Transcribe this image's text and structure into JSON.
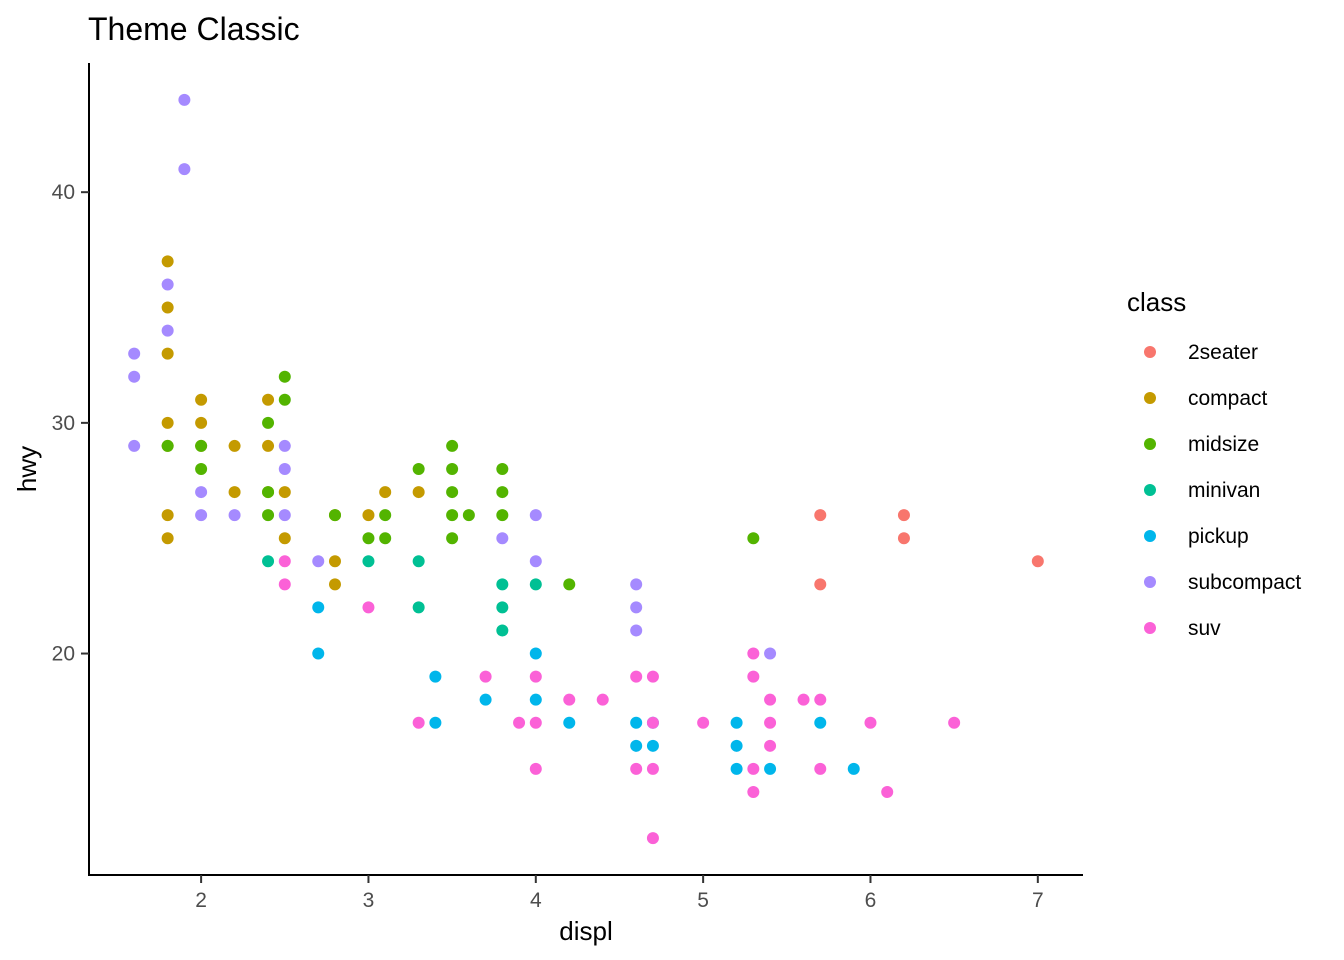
{
  "chart_data": {
    "type": "scatter",
    "title": "Theme Classic",
    "xlabel": "displ",
    "ylabel": "hwy",
    "xlim": [
      1.33,
      7.27
    ],
    "ylim": [
      10.4,
      45.6
    ],
    "xticks": [
      2,
      3,
      4,
      5,
      6,
      7
    ],
    "yticks": [
      20,
      30,
      40
    ],
    "grid": false,
    "legend": {
      "title": "class",
      "position": "right"
    },
    "series": [
      {
        "name": "2seater",
        "color": "#F8766D",
        "points": [
          [
            5.7,
            26
          ],
          [
            5.7,
            23
          ],
          [
            6.2,
            26
          ],
          [
            6.2,
            25
          ],
          [
            7.0,
            24
          ]
        ]
      },
      {
        "name": "compact",
        "color": "#C49A00",
        "points": [
          [
            1.8,
            37
          ],
          [
            1.8,
            35
          ],
          [
            1.8,
            33
          ],
          [
            1.8,
            30
          ],
          [
            1.8,
            29
          ],
          [
            1.8,
            26
          ],
          [
            1.8,
            25
          ],
          [
            2.0,
            31
          ],
          [
            2.0,
            30
          ],
          [
            2.0,
            29
          ],
          [
            2.2,
            29
          ],
          [
            2.2,
            27
          ],
          [
            2.4,
            31
          ],
          [
            2.4,
            29
          ],
          [
            2.4,
            27
          ],
          [
            2.5,
            27
          ],
          [
            2.5,
            25
          ],
          [
            2.8,
            26
          ],
          [
            2.8,
            24
          ],
          [
            2.8,
            23
          ],
          [
            3.0,
            26
          ],
          [
            3.1,
            27
          ],
          [
            3.3,
            27
          ]
        ]
      },
      {
        "name": "midsize",
        "color": "#53B400",
        "points": [
          [
            1.8,
            29
          ],
          [
            2.0,
            29
          ],
          [
            2.0,
            28
          ],
          [
            2.4,
            30
          ],
          [
            2.4,
            27
          ],
          [
            2.4,
            26
          ],
          [
            2.5,
            32
          ],
          [
            2.5,
            31
          ],
          [
            2.8,
            26
          ],
          [
            3.0,
            25
          ],
          [
            3.1,
            26
          ],
          [
            3.1,
            25
          ],
          [
            3.3,
            28
          ],
          [
            3.5,
            29
          ],
          [
            3.5,
            28
          ],
          [
            3.5,
            27
          ],
          [
            3.5,
            26
          ],
          [
            3.5,
            25
          ],
          [
            3.6,
            26
          ],
          [
            3.8,
            28
          ],
          [
            3.8,
            27
          ],
          [
            3.8,
            26
          ],
          [
            4.2,
            23
          ],
          [
            5.3,
            25
          ]
        ]
      },
      {
        "name": "minivan",
        "color": "#00C094",
        "points": [
          [
            2.4,
            24
          ],
          [
            3.0,
            24
          ],
          [
            3.3,
            24
          ],
          [
            3.3,
            22
          ],
          [
            3.8,
            23
          ],
          [
            3.8,
            22
          ],
          [
            3.8,
            21
          ],
          [
            4.0,
            23
          ]
        ]
      },
      {
        "name": "pickup",
        "color": "#00B6EB",
        "points": [
          [
            2.7,
            22
          ],
          [
            2.7,
            20
          ],
          [
            3.4,
            19
          ],
          [
            3.4,
            17
          ],
          [
            3.7,
            18
          ],
          [
            4.0,
            20
          ],
          [
            4.0,
            18
          ],
          [
            4.2,
            17
          ],
          [
            4.6,
            17
          ],
          [
            4.6,
            16
          ],
          [
            4.7,
            17
          ],
          [
            4.7,
            16
          ],
          [
            5.2,
            17
          ],
          [
            5.2,
            16
          ],
          [
            5.2,
            15
          ],
          [
            5.4,
            15
          ],
          [
            5.7,
            17
          ],
          [
            5.9,
            15
          ]
        ]
      },
      {
        "name": "subcompact",
        "color": "#A58AFF",
        "points": [
          [
            1.6,
            33
          ],
          [
            1.6,
            32
          ],
          [
            1.6,
            29
          ],
          [
            1.8,
            36
          ],
          [
            1.8,
            34
          ],
          [
            1.9,
            44
          ],
          [
            1.9,
            41
          ],
          [
            2.0,
            27
          ],
          [
            2.0,
            26
          ],
          [
            2.2,
            26
          ],
          [
            2.5,
            29
          ],
          [
            2.5,
            28
          ],
          [
            2.5,
            26
          ],
          [
            2.7,
            24
          ],
          [
            3.8,
            25
          ],
          [
            4.0,
            26
          ],
          [
            4.0,
            24
          ],
          [
            4.6,
            23
          ],
          [
            4.6,
            22
          ],
          [
            4.6,
            21
          ],
          [
            5.4,
            20
          ]
        ]
      },
      {
        "name": "suv",
        "color": "#FB61D7",
        "points": [
          [
            2.5,
            24
          ],
          [
            2.5,
            23
          ],
          [
            3.0,
            22
          ],
          [
            3.3,
            17
          ],
          [
            3.7,
            19
          ],
          [
            3.9,
            17
          ],
          [
            4.0,
            19
          ],
          [
            4.0,
            17
          ],
          [
            4.0,
            15
          ],
          [
            4.2,
            18
          ],
          [
            4.4,
            18
          ],
          [
            4.6,
            19
          ],
          [
            4.6,
            15
          ],
          [
            4.7,
            19
          ],
          [
            4.7,
            17
          ],
          [
            4.7,
            15
          ],
          [
            4.7,
            12
          ],
          [
            5.0,
            17
          ],
          [
            5.3,
            20
          ],
          [
            5.3,
            19
          ],
          [
            5.3,
            15
          ],
          [
            5.3,
            14
          ],
          [
            5.4,
            18
          ],
          [
            5.4,
            17
          ],
          [
            5.4,
            16
          ],
          [
            5.6,
            18
          ],
          [
            5.7,
            18
          ],
          [
            5.7,
            15
          ],
          [
            6.0,
            17
          ],
          [
            6.1,
            14
          ],
          [
            6.5,
            17
          ]
        ]
      }
    ]
  }
}
